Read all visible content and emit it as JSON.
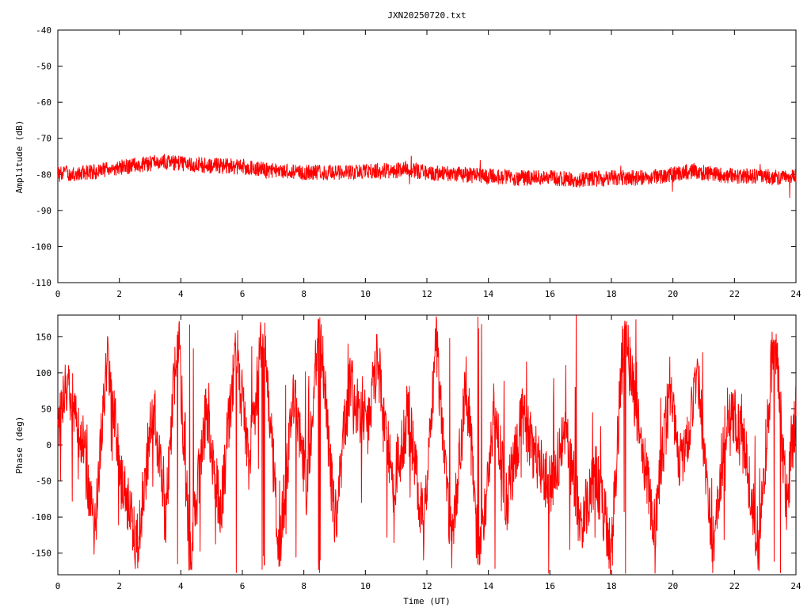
{
  "title": "JXN20250720.txt",
  "colors": {
    "series": "#ff0000",
    "axis": "#000000",
    "background": "#ffffff"
  },
  "chart_data": [
    {
      "type": "line",
      "title": "JXN20250720.txt",
      "xlabel": "",
      "ylabel": "Amplitude (dB)",
      "xlim": [
        0,
        24
      ],
      "ylim": [
        -110,
        -40
      ],
      "xticks": [
        "0",
        "2",
        "4",
        "6",
        "8",
        "10",
        "12",
        "14",
        "16",
        "18",
        "20",
        "22",
        "24"
      ],
      "yticks": [
        "-40",
        "-50",
        "-60",
        "-70",
        "-80",
        "-90",
        "-100",
        "-110"
      ],
      "grid": false,
      "series": [
        {
          "x": [
            0,
            1,
            2,
            3,
            3.5,
            4,
            5,
            6,
            7,
            8,
            9,
            10,
            11,
            11.2,
            12,
            13,
            14,
            15,
            16,
            17,
            18,
            19,
            20,
            20.7,
            21,
            22,
            23,
            23.8,
            24
          ],
          "y": [
            -80,
            -79.5,
            -78,
            -77,
            -76.5,
            -77,
            -77.5,
            -78,
            -79,
            -79.5,
            -79.5,
            -79,
            -79,
            -78.5,
            -79.5,
            -80,
            -80.5,
            -81,
            -81,
            -81.5,
            -81,
            -81,
            -80,
            -79,
            -79.5,
            -80.5,
            -80.5,
            -81,
            -80.5
          ],
          "noise_db": 2.2,
          "min_y": -86.5
        }
      ]
    },
    {
      "type": "line",
      "title": "",
      "xlabel": "Time (UT)",
      "ylabel": "Phase (deg)",
      "xlim": [
        0,
        24
      ],
      "ylim": [
        -180,
        180
      ],
      "xticks": [
        "0",
        "2",
        "4",
        "6",
        "8",
        "10",
        "12",
        "14",
        "16",
        "18",
        "20",
        "22",
        "24"
      ],
      "yticks": [
        "150",
        "100",
        "50",
        "0",
        "-50",
        "-100",
        "-150"
      ],
      "grid": false,
      "series": [
        {
          "x": [
            0,
            0.3,
            0.8,
            1.2,
            1.6,
            2.1,
            2.6,
            3.1,
            3.5,
            3.9,
            4.3,
            4.8,
            5.3,
            5.8,
            6.2,
            6.7,
            7.2,
            7.7,
            8.1,
            8.5,
            9.0,
            9.5,
            10.0,
            10.4,
            10.9,
            11.4,
            11.9,
            12.3,
            12.8,
            13.3,
            13.7,
            14.2,
            14.6,
            15.1,
            15.6,
            16.0,
            16.5,
            17.0,
            17.5,
            18.0,
            18.4,
            18.9,
            19.4,
            19.9,
            20.3,
            20.8,
            21.3,
            21.8,
            22.3,
            22.8,
            23.3,
            23.7,
            24.0
          ],
          "y": [
            30,
            80,
            10,
            -120,
            120,
            -60,
            -140,
            60,
            -100,
            170,
            -160,
            40,
            -90,
            140,
            -30,
            170,
            -150,
            80,
            -60,
            175,
            -110,
            90,
            10,
            120,
            -60,
            50,
            -120,
            140,
            -140,
            90,
            -170,
            60,
            -80,
            40,
            -20,
            -60,
            20,
            -110,
            -40,
            -150,
            160,
            30,
            -120,
            80,
            -40,
            100,
            -140,
            60,
            0,
            -140,
            170,
            -80,
            50
          ],
          "noise_deg": 45
        }
      ]
    }
  ]
}
